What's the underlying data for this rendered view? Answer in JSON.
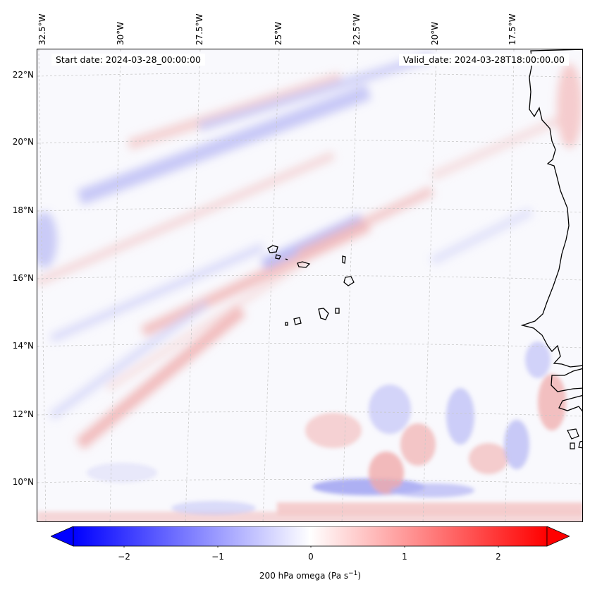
{
  "map": {
    "start_date_label": "Start date: 2024-03-28_00:00:00",
    "valid_date_label": "Valid_date: 2024-03-28T18:00:00.00",
    "longitude_labels": [
      "32.5°W",
      "30°W",
      "27.5°W",
      "25°W",
      "22.5°W",
      "20°W",
      "17.5°W"
    ],
    "latitude_labels": [
      "22°N",
      "20°N",
      "18°N",
      "16°N",
      "14°N",
      "12°N",
      "10°N"
    ],
    "colors": {
      "negative": "#0000ff",
      "positive": "#ff0000",
      "neutral": "#ffffff",
      "coastline": "#000000",
      "gridline": "#c8c8c8"
    }
  },
  "colorbar": {
    "label_prefix": "200 hPa omega (Pa s",
    "label_exponent": "−1",
    "label_suffix": ")",
    "ticks": [
      "−2",
      "−1",
      "0",
      "1",
      "2"
    ],
    "min": -2.5,
    "max": 2.5
  }
}
